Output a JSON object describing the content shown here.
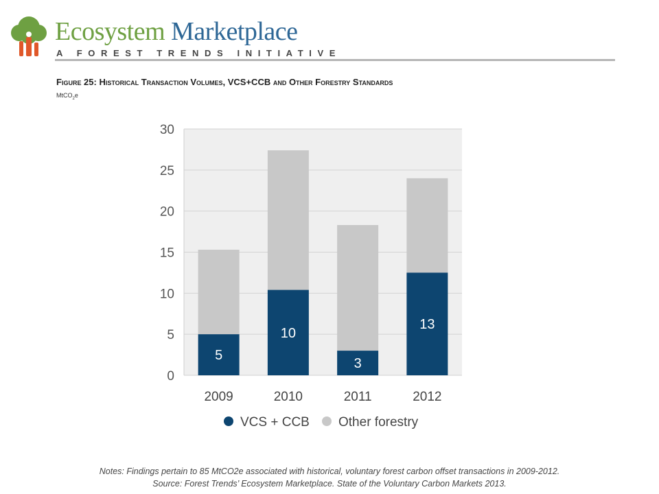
{
  "brand": {
    "name_part1": "Ecosystem",
    "name_part2": " Marketplace",
    "tagline": "A FOREST TRENDS INITIATIVE",
    "colors": {
      "green": "#6ea042",
      "blue": "#2e6796",
      "orange": "#e0582a"
    },
    "logo_icon": "tree-icon"
  },
  "figure": {
    "title": "Figure 25: Historical Transaction Volumes, VCS+CCB and Other Forestry Standards",
    "unit_prefix": "MtCO",
    "unit_sub": "2",
    "unit_suffix": "e"
  },
  "chart_data": {
    "type": "bar",
    "stacked": true,
    "categories": [
      "2009",
      "2010",
      "2011",
      "2012"
    ],
    "series": [
      {
        "name": "VCS + CCB",
        "values": [
          5,
          10.4,
          3,
          12.5
        ],
        "labels": [
          "5",
          "10",
          "3",
          "13"
        ],
        "color": "#0d4570"
      },
      {
        "name": "Other forestry",
        "values": [
          10.3,
          17,
          15.3,
          11.5
        ],
        "color": "#c8c8c8"
      }
    ],
    "totals": [
      15.3,
      27.4,
      18.3,
      24
    ],
    "yticks": [
      "0",
      "5",
      "10",
      "15",
      "20",
      "25",
      "30"
    ],
    "ylim": [
      0,
      30
    ],
    "grid": true,
    "legend_position": "bottom"
  },
  "notes": {
    "line1": "Notes: Findings pertain to 85 MtCO2e associated with historical, voluntary forest carbon offset transactions in 2009-2012.",
    "line2": "Source: Forest Trends’ Ecosystem Marketplace. State of the Voluntary Carbon Markets 2013."
  }
}
